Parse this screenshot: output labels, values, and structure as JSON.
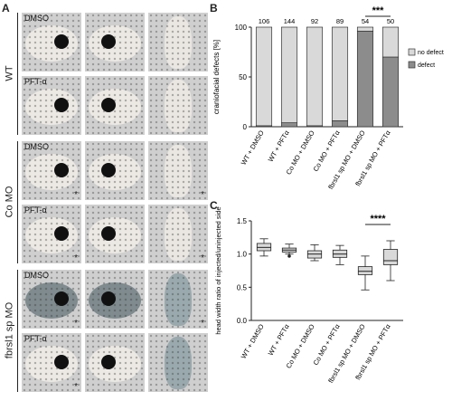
{
  "panel_a": {
    "letter": "A",
    "groups": [
      {
        "label": "WT",
        "rows": [
          {
            "caption": "DMSO",
            "stars": [
              false,
              false,
              false
            ]
          },
          {
            "caption": "PFT-α",
            "stars": [
              false,
              false,
              false
            ]
          }
        ]
      },
      {
        "label": "Co MO",
        "rows": [
          {
            "caption": "DMSO",
            "stars": [
              true,
              false,
              true
            ]
          },
          {
            "caption": "PFT-α",
            "stars": [
              true,
              false,
              true
            ]
          }
        ]
      },
      {
        "label": "fbrsl1 sp MO",
        "rows": [
          {
            "caption": "DMSO",
            "stars": [
              true,
              false,
              true
            ]
          },
          {
            "caption": "PFT-α",
            "stars": [
              true,
              false,
              false
            ]
          }
        ]
      }
    ],
    "star_symbol": "*"
  },
  "panel_b": {
    "letter": "B",
    "ylabel": "craniofacial defects [%]",
    "significance": "***",
    "legend": [
      "no defect",
      "defect"
    ]
  },
  "panel_c": {
    "letter": "C",
    "ylabel": "head width ratio of injected/uninjected side",
    "significance": "****"
  },
  "colors": {
    "no_defect": "#d9d9d9",
    "defect": "#8c8c8c",
    "box": "#d9d9d9"
  },
  "chart_data": [
    {
      "type": "bar",
      "stacked": true,
      "categories": [
        "WT + DMSO",
        "WT + PFTα",
        "Co MO + DMSO",
        "Co MO + PFTα",
        "fbrsl1 sp MO + DMSO",
        "fbrsl1 sp MO + PFTα"
      ],
      "n_labels": [
        "106",
        "144",
        "92",
        "89",
        "54",
        "50"
      ],
      "series": [
        {
          "name": "defect",
          "values": [
            1,
            4,
            1,
            6,
            96,
            70
          ]
        },
        {
          "name": "no defect",
          "values": [
            99,
            96,
            99,
            94,
            4,
            30
          ]
        }
      ],
      "ylabel": "craniofacial defects [%]",
      "ylim": [
        0,
        100
      ],
      "yticks": [
        "0",
        "50",
        "100"
      ],
      "legend_position": "right"
    },
    {
      "type": "box",
      "categories": [
        "WT + DMSO",
        "WT + PFTα",
        "Co MO + DMSO",
        "Co MO + PFTα",
        "fbrsl1 sp MO + DMSO",
        "fbrsl1 sp MO + PFTα"
      ],
      "boxes": [
        {
          "min": 0.97,
          "q1": 1.05,
          "median": 1.1,
          "q3": 1.16,
          "max": 1.23,
          "outliers": []
        },
        {
          "min": 1.0,
          "q1": 1.03,
          "median": 1.06,
          "q3": 1.09,
          "max": 1.15,
          "outliers": [
            0.97
          ]
        },
        {
          "min": 0.9,
          "q1": 0.94,
          "median": 1.0,
          "q3": 1.05,
          "max": 1.14,
          "outliers": []
        },
        {
          "min": 0.84,
          "q1": 0.95,
          "median": 1.0,
          "q3": 1.06,
          "max": 1.13,
          "outliers": []
        },
        {
          "min": 0.46,
          "q1": 0.69,
          "median": 0.74,
          "q3": 0.81,
          "max": 0.97,
          "outliers": []
        },
        {
          "min": 0.6,
          "q1": 0.84,
          "median": 0.9,
          "q3": 1.07,
          "max": 1.2,
          "outliers": []
        }
      ],
      "ylabel": "head width ratio of injected/uninjected side",
      "ylim": [
        0,
        1.5
      ],
      "yticks": [
        "0.0",
        "0.5",
        "1.0",
        "1.5"
      ]
    }
  ]
}
